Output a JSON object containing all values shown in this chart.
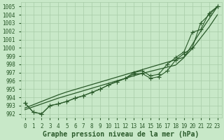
{
  "xlabel": "Graphe pression niveau de la mer (hPa)",
  "bg_color": "#c8e8c8",
  "grid_color": "#a8cca8",
  "line_color": "#2a5a2a",
  "ylim": [
    991.5,
    1005.5
  ],
  "xlim": [
    -0.5,
    23.5
  ],
  "yticks": [
    992,
    993,
    994,
    995,
    996,
    997,
    998,
    999,
    1000,
    1001,
    1002,
    1003,
    1004,
    1005
  ],
  "xticks": [
    0,
    1,
    2,
    3,
    4,
    5,
    6,
    7,
    8,
    9,
    10,
    11,
    12,
    13,
    14,
    15,
    16,
    17,
    18,
    19,
    20,
    21,
    22,
    23
  ],
  "trend1": [
    992.7,
    993.1,
    993.5,
    993.9,
    994.3,
    994.65,
    994.95,
    995.25,
    995.55,
    995.85,
    996.15,
    996.45,
    996.75,
    997.05,
    997.35,
    997.65,
    997.95,
    998.25,
    998.55,
    998.85,
    999.9,
    1001.2,
    1002.5,
    1004.0
  ],
  "trend2": [
    992.5,
    992.85,
    993.2,
    993.55,
    993.9,
    994.2,
    994.5,
    994.8,
    995.1,
    995.4,
    995.7,
    996.0,
    996.3,
    996.6,
    996.9,
    997.15,
    997.4,
    997.65,
    997.9,
    998.8,
    1000.4,
    1002.0,
    1003.5,
    1005.0
  ],
  "curve1_x": [
    0,
    1,
    2,
    3,
    4,
    5,
    6,
    7,
    8,
    9,
    10,
    11,
    12,
    13,
    14,
    15,
    16,
    17,
    18,
    19,
    20,
    21,
    22,
    23
  ],
  "curve1_y": [
    993.3,
    992.2,
    992.0,
    993.0,
    993.2,
    993.5,
    993.9,
    994.2,
    994.6,
    995.0,
    995.5,
    995.9,
    996.3,
    996.8,
    996.9,
    996.3,
    996.5,
    997.2,
    998.5,
    999.3,
    1000.0,
    1003.0,
    1004.0,
    1005.0
  ],
  "curve2_x": [
    0,
    1,
    2,
    3,
    4,
    5,
    6,
    7,
    8,
    9,
    10,
    11,
    12,
    13,
    14,
    15,
    16,
    17,
    18,
    19,
    20,
    21,
    22,
    23
  ],
  "curve2_y": [
    993.3,
    992.2,
    992.0,
    993.0,
    993.2,
    993.5,
    993.9,
    994.2,
    994.6,
    995.0,
    995.5,
    995.9,
    996.3,
    997.0,
    997.2,
    996.6,
    996.8,
    998.0,
    998.8,
    999.5,
    1001.9,
    1002.2,
    1004.2,
    1005.0
  ],
  "tick_fontsize": 5.5,
  "label_fontsize": 7.0
}
